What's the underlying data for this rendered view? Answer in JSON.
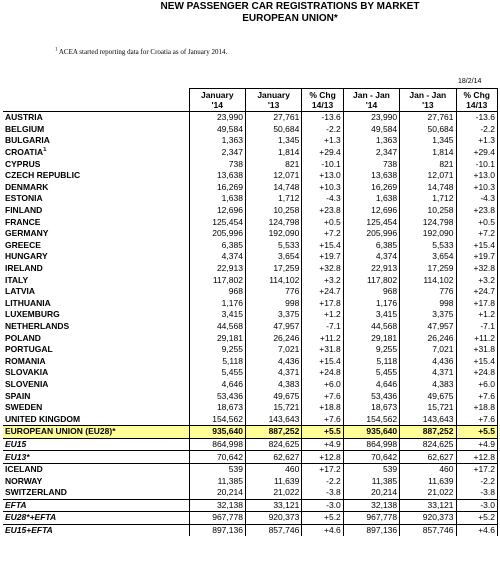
{
  "header": {
    "title": "NEW PASSENGER CAR REGISTRATIONS BY MARKET",
    "subtitle": "EUROPEAN UNION*",
    "note_mark": "1",
    "note": "ACEA started reporting data for Croatia as of January 2014.",
    "date": "18/2/14"
  },
  "columns": [
    [
      "January",
      "'14"
    ],
    [
      "January",
      "'13"
    ],
    [
      "% Chg",
      "14/13"
    ],
    [
      "Jan - Jan",
      "'14"
    ],
    [
      "Jan - Jan",
      "'13"
    ],
    [
      "% Chg",
      "14/13"
    ]
  ],
  "rows": [
    {
      "name": "AUSTRIA",
      "v": [
        "23,990",
        "27,761",
        "-13.6",
        "23,990",
        "27,761",
        "-13.6"
      ]
    },
    {
      "name": "BELGIUM",
      "v": [
        "49,584",
        "50,684",
        "-2.2",
        "49,584",
        "50,684",
        "-2.2"
      ]
    },
    {
      "name": "BULGARIA",
      "v": [
        "1,363",
        "1,345",
        "+1.3",
        "1,363",
        "1,345",
        "+1.3"
      ]
    },
    {
      "name": "CROATIA",
      "sup": "1",
      "v": [
        "2,347",
        "1,814",
        "+29.4",
        "2,347",
        "1,814",
        "+29.4"
      ]
    },
    {
      "name": "CYPRUS",
      "v": [
        "738",
        "821",
        "-10.1",
        "738",
        "821",
        "-10.1"
      ]
    },
    {
      "name": "CZECH REPUBLIC",
      "v": [
        "13,638",
        "12,071",
        "+13.0",
        "13,638",
        "12,071",
        "+13.0"
      ]
    },
    {
      "name": "DENMARK",
      "v": [
        "16,269",
        "14,748",
        "+10.3",
        "16,269",
        "14,748",
        "+10.3"
      ]
    },
    {
      "name": "ESTONIA",
      "v": [
        "1,638",
        "1,712",
        "-4.3",
        "1,638",
        "1,712",
        "-4.3"
      ]
    },
    {
      "name": "FINLAND",
      "v": [
        "12,696",
        "10,258",
        "+23.8",
        "12,696",
        "10,258",
        "+23.8"
      ]
    },
    {
      "name": "FRANCE",
      "v": [
        "125,454",
        "124,798",
        "+0.5",
        "125,454",
        "124,798",
        "+0.5"
      ]
    },
    {
      "name": "GERMANY",
      "v": [
        "205,996",
        "192,090",
        "+7.2",
        "205,996",
        "192,090",
        "+7.2"
      ]
    },
    {
      "name": "GREECE",
      "v": [
        "6,385",
        "5,533",
        "+15.4",
        "6,385",
        "5,533",
        "+15.4"
      ]
    },
    {
      "name": "HUNGARY",
      "v": [
        "4,374",
        "3,654",
        "+19.7",
        "4,374",
        "3,654",
        "+19.7"
      ]
    },
    {
      "name": "IRELAND",
      "v": [
        "22,913",
        "17,259",
        "+32.8",
        "22,913",
        "17,259",
        "+32.8"
      ]
    },
    {
      "name": "ITALY",
      "v": [
        "117,802",
        "114,102",
        "+3.2",
        "117,802",
        "114,102",
        "+3.2"
      ]
    },
    {
      "name": "LATVIA",
      "v": [
        "968",
        "776",
        "+24.7",
        "968",
        "776",
        "+24.7"
      ]
    },
    {
      "name": "LITHUANIA",
      "v": [
        "1,176",
        "998",
        "+17.8",
        "1,176",
        "998",
        "+17.8"
      ]
    },
    {
      "name": "LUXEMBURG",
      "v": [
        "3,415",
        "3,375",
        "+1.2",
        "3,415",
        "3,375",
        "+1.2"
      ]
    },
    {
      "name": "NETHERLANDS",
      "v": [
        "44,568",
        "47,957",
        "-7.1",
        "44,568",
        "47,957",
        "-7.1"
      ]
    },
    {
      "name": "POLAND",
      "v": [
        "29,181",
        "26,246",
        "+11.2",
        "29,181",
        "26,246",
        "+11.2"
      ]
    },
    {
      "name": "PORTUGAL",
      "v": [
        "9,255",
        "7,021",
        "+31.8",
        "9,255",
        "7,021",
        "+31.8"
      ]
    },
    {
      "name": "ROMANIA",
      "v": [
        "5,118",
        "4,436",
        "+15.4",
        "5,118",
        "4,436",
        "+15.4"
      ]
    },
    {
      "name": "SLOVAKIA",
      "v": [
        "5,455",
        "4,371",
        "+24.8",
        "5,455",
        "4,371",
        "+24.8"
      ]
    },
    {
      "name": "SLOVENIA",
      "v": [
        "4,646",
        "4,383",
        "+6.0",
        "4,646",
        "4,383",
        "+6.0"
      ]
    },
    {
      "name": "SPAIN",
      "v": [
        "53,436",
        "49,675",
        "+7.6",
        "53,436",
        "49,675",
        "+7.6"
      ]
    },
    {
      "name": "SWEDEN",
      "v": [
        "18,673",
        "15,721",
        "+18.8",
        "18,673",
        "15,721",
        "+18.8"
      ]
    },
    {
      "name": "UNITED KINGDOM",
      "v": [
        "154,562",
        "143,643",
        "+7.6",
        "154,562",
        "143,643",
        "+7.6"
      ]
    },
    {
      "name": "EUROPEAN UNION (EU28)*",
      "style": "hl",
      "v": [
        "935,640",
        "887,252",
        "+5.5",
        "935,640",
        "887,252",
        "+5.5"
      ]
    },
    {
      "name": "EU15",
      "style": "agg",
      "v": [
        "864,998",
        "824,625",
        "+4.9",
        "864,998",
        "824,625",
        "+4.9"
      ]
    },
    {
      "name": "EU13*",
      "style": "agg",
      "v": [
        "70,642",
        "62,627",
        "+12.8",
        "70,642",
        "62,627",
        "+12.8"
      ]
    },
    {
      "name": "ICELAND",
      "style": "sep",
      "v": [
        "539",
        "460",
        "+17.2",
        "539",
        "460",
        "+17.2"
      ]
    },
    {
      "name": "NORWAY",
      "v": [
        "11,385",
        "11,639",
        "-2.2",
        "11,385",
        "11,639",
        "-2.2"
      ]
    },
    {
      "name": "SWITZERLAND",
      "v": [
        "20,214",
        "21,022",
        "-3.8",
        "20,214",
        "21,022",
        "-3.8"
      ]
    },
    {
      "name": "EFTA",
      "style": "agg",
      "v": [
        "32,138",
        "33,121",
        "-3.0",
        "32,138",
        "33,121",
        "-3.0"
      ]
    },
    {
      "name": "EU28*+EFTA",
      "style": "agg",
      "v": [
        "967,778",
        "920,373",
        "+5.2",
        "967,778",
        "920,373",
        "+5.2"
      ]
    },
    {
      "name": "EU15+EFTA",
      "style": "agg",
      "v": [
        "897,136",
        "857,746",
        "+4.6",
        "897,136",
        "857,746",
        "+4.6"
      ]
    }
  ]
}
